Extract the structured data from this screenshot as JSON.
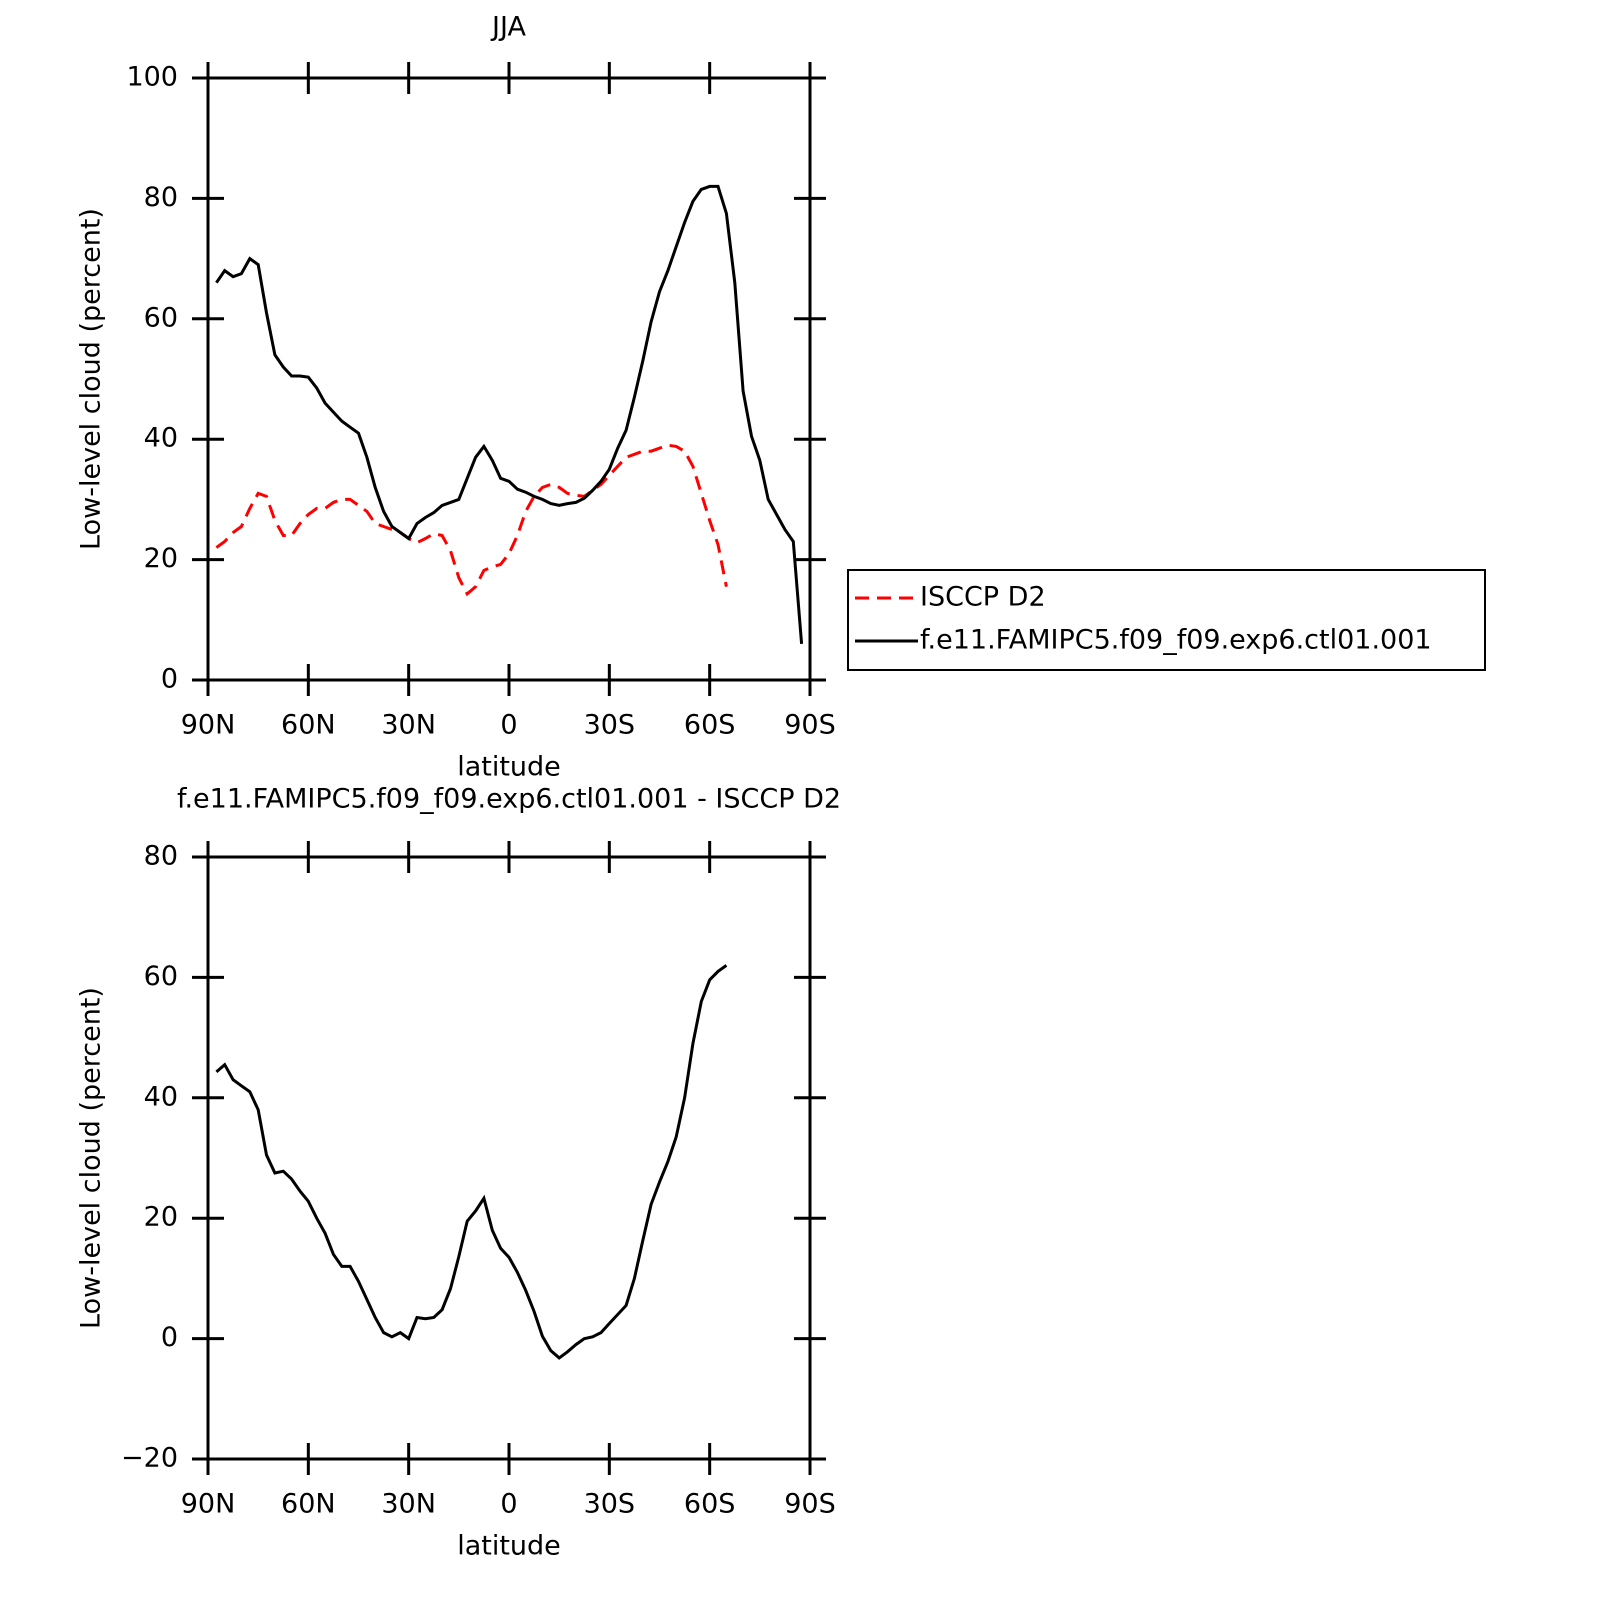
{
  "chart_data": [
    {
      "type": "line",
      "title": "JJA",
      "xlabel": "latitude",
      "ylabel": "Low-level cloud (percent)",
      "xlim": [
        90,
        -90
      ],
      "xticks": [
        {
          "value": 90,
          "label": "90N"
        },
        {
          "value": 60,
          "label": "60N"
        },
        {
          "value": 30,
          "label": "30N"
        },
        0,
        {
          "value": -30,
          "label": "30S"
        },
        {
          "value": -60,
          "label": "60S"
        },
        {
          "value": -90,
          "label": "90S"
        }
      ],
      "ylim": [
        0,
        100
      ],
      "yticks": [
        0,
        20,
        40,
        60,
        80,
        100
      ],
      "legend": "outside-right",
      "x": [
        87.5,
        85,
        82.5,
        80,
        77.5,
        75,
        72.5,
        70,
        67.5,
        65,
        62.5,
        60,
        57.5,
        55,
        52.5,
        50,
        47.5,
        45,
        42.5,
        40,
        37.5,
        35,
        32.5,
        30,
        27.5,
        25,
        22.5,
        20,
        17.5,
        15,
        12.5,
        10,
        7.5,
        5,
        2.5,
        0,
        -2.5,
        -5,
        -7.5,
        -10,
        -12.5,
        -15,
        -17.5,
        -20,
        -22.5,
        -25,
        -27.5,
        -30,
        -32.5,
        -35,
        -37.5,
        -40,
        -42.5,
        -45,
        -47.5,
        -50,
        -52.5,
        -55,
        -57.5,
        -60,
        -62.5,
        -65,
        -67.5,
        -70,
        -72.5,
        -75,
        -77.5,
        -80,
        -82.5,
        -85,
        -87.5
      ],
      "series": [
        {
          "name": "ISCCP D2",
          "color": "#ff0000",
          "dash": true,
          "values": [
            22,
            23,
            24.5,
            25.5,
            28.5,
            31,
            30.5,
            26.5,
            24,
            24,
            26,
            27.5,
            28.5,
            28.5,
            29.5,
            30,
            30,
            29,
            28,
            26,
            25.5,
            25,
            24.5,
            23.5,
            22.8,
            23.5,
            24.3,
            24,
            21.5,
            17,
            14.3,
            15.5,
            18.2,
            18.8,
            19.2,
            21,
            24,
            28,
            30.5,
            32,
            32.5,
            32,
            31,
            30.7,
            30.5,
            31.5,
            32.5,
            34,
            35.5,
            37,
            37.5,
            38,
            38,
            38.5,
            39,
            38.8,
            38,
            35.5,
            31,
            26.5,
            22.5,
            15.5,
            null,
            null,
            null,
            null,
            null,
            null,
            null,
            null,
            null
          ]
        },
        {
          "name": "f.e11.FAMIPC5.f09_f09.exp6.ctl01.001",
          "color": "#000000",
          "dash": false,
          "values": [
            66,
            68,
            67,
            67.5,
            70,
            69,
            61,
            54,
            52,
            50.5,
            50.5,
            50.3,
            48.5,
            46,
            44.5,
            43,
            42,
            41,
            37,
            32,
            28,
            25.5,
            24.5,
            23.5,
            26,
            27,
            27.8,
            29,
            29.5,
            30,
            33.5,
            37,
            38.8,
            36.5,
            33.5,
            33,
            31.7,
            31.2,
            30.5,
            30,
            29.3,
            29,
            29.3,
            29.5,
            30.2,
            31.5,
            33,
            35,
            38.5,
            41.5,
            47,
            53,
            59.5,
            64.5,
            68,
            72,
            76,
            79.5,
            81.5,
            82,
            82,
            77.5,
            66,
            48,
            40.5,
            36.5,
            30,
            27.5,
            25,
            23,
            6
          ]
        }
      ]
    },
    {
      "type": "line",
      "title": "f.e11.FAMIPC5.f09_f09.exp6.ctl01.001 - ISCCP D2",
      "xlabel": "latitude",
      "ylabel": "Low-level cloud (percent)",
      "xlim": [
        90,
        -90
      ],
      "xticks": [
        {
          "value": 90,
          "label": "90N"
        },
        {
          "value": 60,
          "label": "60N"
        },
        {
          "value": 30,
          "label": "30N"
        },
        0,
        {
          "value": -30,
          "label": "30S"
        },
        {
          "value": -60,
          "label": "60S"
        },
        {
          "value": -90,
          "label": "90S"
        }
      ],
      "ylim": [
        -20,
        80
      ],
      "yticks": [
        {
          "value": -20,
          "label": "−20"
        },
        0,
        20,
        40,
        60,
        80
      ],
      "x": [
        87.5,
        85,
        82.5,
        80,
        77.5,
        75,
        72.5,
        70,
        67.5,
        65,
        62.5,
        60,
        57.5,
        55,
        52.5,
        50,
        47.5,
        45,
        42.5,
        40,
        37.5,
        35,
        32.5,
        30,
        27.5,
        25,
        22.5,
        20,
        17.5,
        15,
        12.5,
        10,
        7.5,
        5,
        2.5,
        0,
        -2.5,
        -5,
        -7.5,
        -10,
        -12.5,
        -15,
        -17.5,
        -20,
        -22.5,
        -25,
        -27.5,
        -30,
        -32.5,
        -35,
        -37.5,
        -40,
        -42.5,
        -45,
        -47.5,
        -50,
        -52.5,
        -55,
        -57.5,
        -60,
        -62.5,
        -65,
        -67.5,
        -70,
        -72.5,
        -75,
        -77.5,
        -80,
        -82.5,
        -85,
        -87.5
      ],
      "series": [
        {
          "color": "#000000",
          "dash": false,
          "values": [
            44.3,
            45.5,
            43,
            42,
            41,
            38,
            30.5,
            27.5,
            27.8,
            26.5,
            24.5,
            22.8,
            20,
            17.5,
            14,
            12,
            12,
            9.5,
            6.5,
            3.5,
            1,
            0.3,
            1,
            0,
            3.5,
            3.3,
            3.5,
            4.8,
            8.3,
            13.6,
            19.5,
            21.2,
            23.3,
            18,
            15,
            13.5,
            11,
            8,
            4.5,
            0.4,
            -2,
            -3.2,
            -2.2,
            -1,
            0,
            0.3,
            1,
            2.5,
            4,
            5.5,
            10,
            16.3,
            22.3,
            26,
            29.4,
            33.5,
            40,
            49,
            56,
            59.6,
            61,
            62,
            null,
            null,
            null,
            null,
            null,
            null,
            null,
            null,
            null
          ]
        }
      ]
    }
  ]
}
